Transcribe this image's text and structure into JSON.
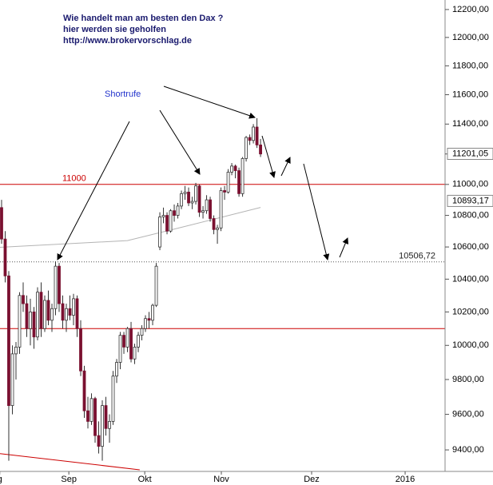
{
  "chart_data": {
    "type": "candlestick",
    "title_lines": [
      "Wie handelt man am besten  den Dax ?",
      "hier werden sie geholfen",
      "http://www.brokervorschlag.de"
    ],
    "annotation": "Shortrufe",
    "log_scale": true,
    "ylim": [
      9281,
      12269
    ],
    "yticks": [
      {
        "value": 9400,
        "label": "9400,00"
      },
      {
        "value": 9600,
        "label": "9600,00"
      },
      {
        "value": 9800,
        "label": "9800,00"
      },
      {
        "value": 10000,
        "label": "10000,00"
      },
      {
        "value": 10200,
        "label": "10200,00"
      },
      {
        "value": 10400,
        "label": "10400,00"
      },
      {
        "value": 10600,
        "label": "10600,00"
      },
      {
        "value": 10800,
        "label": "10800,00"
      },
      {
        "value": 11000,
        "label": "11000,00"
      },
      {
        "value": 11200,
        "label": "11200,00"
      },
      {
        "value": 11400,
        "label": "11400,00"
      },
      {
        "value": 11600,
        "label": "11600,00"
      },
      {
        "value": 11800,
        "label": "11800,00"
      },
      {
        "value": 12000,
        "label": "12000,00"
      },
      {
        "value": 12200,
        "label": "12200,00"
      }
    ],
    "xlim": [
      -0.44,
      123.3
    ],
    "xticks": [
      {
        "value": -0.5,
        "label": "g"
      },
      {
        "value": 18.7,
        "label": "Sep"
      },
      {
        "value": 39.8,
        "label": "Okt"
      },
      {
        "value": 61.1,
        "label": "Nov"
      },
      {
        "value": 86.2,
        "label": "Dez"
      },
      {
        "value": 112.2,
        "label": "2016"
      }
    ],
    "up_color": "#ffffff",
    "down_color": "#7a1030",
    "x": [
      0,
      1,
      2,
      3,
      4,
      5,
      6,
      7,
      8,
      9,
      10,
      11,
      12,
      13,
      14,
      15,
      16,
      17,
      18,
      19,
      20,
      21,
      22,
      23,
      24,
      25,
      26,
      27,
      28,
      29,
      30,
      31,
      32,
      33,
      34,
      35,
      36,
      37,
      38,
      39,
      40,
      41,
      42,
      43,
      44,
      45,
      46,
      47,
      48,
      49,
      50,
      51,
      52,
      53,
      54,
      55,
      56,
      57,
      58,
      59,
      60,
      61,
      62,
      63,
      64,
      65,
      66,
      67,
      68,
      69,
      70,
      71,
      72
    ],
    "open": [
      10850,
      10650,
      10420,
      9650,
      9950,
      9990,
      10300,
      10250,
      10100,
      10200,
      10050,
      10320,
      10100,
      10270,
      10150,
      10220,
      10480,
      10250,
      10150,
      10220,
      10180,
      10280,
      10100,
      9850,
      9620,
      9560,
      9690,
      9480,
      9420,
      9650,
      9520,
      9560,
      9820,
      9900,
      10060,
      9990,
      10100,
      9920,
      9990,
      10060,
      10100,
      10160,
      10150,
      10240,
      10600,
      10790,
      10800,
      10700,
      10830,
      10800,
      10860,
      10940,
      10950,
      10880,
      10890,
      10990,
      10820,
      10830,
      10900,
      10780,
      10710,
      10720,
      10960,
      10950,
      11080,
      11120,
      11090,
      10940,
      11170,
      11310,
      11290,
      11380,
      11260
    ],
    "high": [
      10900,
      10700,
      10450,
      10000,
      10020,
      10320,
      10380,
      10300,
      10280,
      10230,
      10350,
      10380,
      10300,
      10330,
      10250,
      10510,
      10500,
      10300,
      10250,
      10300,
      10310,
      10300,
      10150,
      9880,
      9700,
      9720,
      9700,
      9560,
      9680,
      9700,
      9600,
      9850,
      9920,
      10080,
      10080,
      10110,
      10140,
      10010,
      10080,
      10120,
      10180,
      10200,
      10250,
      10500,
      10820,
      10850,
      10820,
      10840,
      10870,
      10880,
      10960,
      10990,
      10980,
      10920,
      11010,
      11000,
      10860,
      10930,
      10920,
      10800,
      10740,
      10980,
      10990,
      11100,
      11140,
      11130,
      11110,
      11180,
      11320,
      11330,
      11400,
      11440,
      11300
    ],
    "low": [
      10620,
      10380,
      9340,
      9600,
      9800,
      9950,
      10200,
      10050,
      10000,
      9980,
      10030,
      10050,
      10080,
      10120,
      10080,
      10180,
      10200,
      10100,
      10080,
      10150,
      10120,
      10050,
      9820,
      9580,
      9520,
      9540,
      9440,
      9380,
      9340,
      9480,
      9440,
      9540,
      9780,
      9860,
      9950,
      9960,
      9900,
      9890,
      9960,
      10030,
      10080,
      10100,
      10120,
      10230,
      10580,
      10750,
      10680,
      10690,
      10760,
      10780,
      10840,
      10900,
      10860,
      10840,
      10870,
      10790,
      10780,
      10810,
      10760,
      10680,
      10620,
      10700,
      10900,
      10940,
      11060,
      11040,
      10920,
      10920,
      11150,
      11260,
      11270,
      11240,
      11180
    ],
    "close": [
      10650,
      10420,
      9650,
      9950,
      9990,
      10300,
      10250,
      10100,
      10200,
      10050,
      10320,
      10100,
      10270,
      10150,
      10220,
      10480,
      10250,
      10150,
      10220,
      10180,
      10280,
      10100,
      9850,
      9620,
      9560,
      9690,
      9480,
      9420,
      9650,
      9520,
      9560,
      9820,
      9900,
      10060,
      9990,
      10100,
      9920,
      9990,
      10060,
      10100,
      10160,
      10150,
      10240,
      10480,
      10790,
      10800,
      10700,
      10830,
      10800,
      10860,
      10940,
      10950,
      10880,
      10890,
      10990,
      10820,
      10830,
      10900,
      10780,
      10710,
      10720,
      10960,
      10950,
      11080,
      11120,
      11090,
      10940,
      11170,
      11310,
      11290,
      11380,
      11260,
      11200
    ],
    "moving_average": {
      "color": "#b4b4b4",
      "x": [
        -0.44,
        35,
        50,
        72
      ],
      "values": [
        10598,
        10640,
        10724,
        10851
      ]
    },
    "trendline": {
      "color": "#cc0000",
      "x": [
        -0.44,
        38.4
      ],
      "values": [
        9379,
        9290
      ]
    },
    "hlines": [
      {
        "value": 11000,
        "label": "11000",
        "color": "#cc0000",
        "style": "solid"
      },
      {
        "value": 10100,
        "color": "#cc0000",
        "style": "solid"
      },
      {
        "value": 10506.72,
        "label": "10506,72",
        "color": "#555555",
        "style": "dotted"
      }
    ],
    "price_markers": [
      {
        "value": 11201.05,
        "label": "11201,05"
      },
      {
        "value": 10893.17,
        "label": "10893,17"
      }
    ]
  }
}
